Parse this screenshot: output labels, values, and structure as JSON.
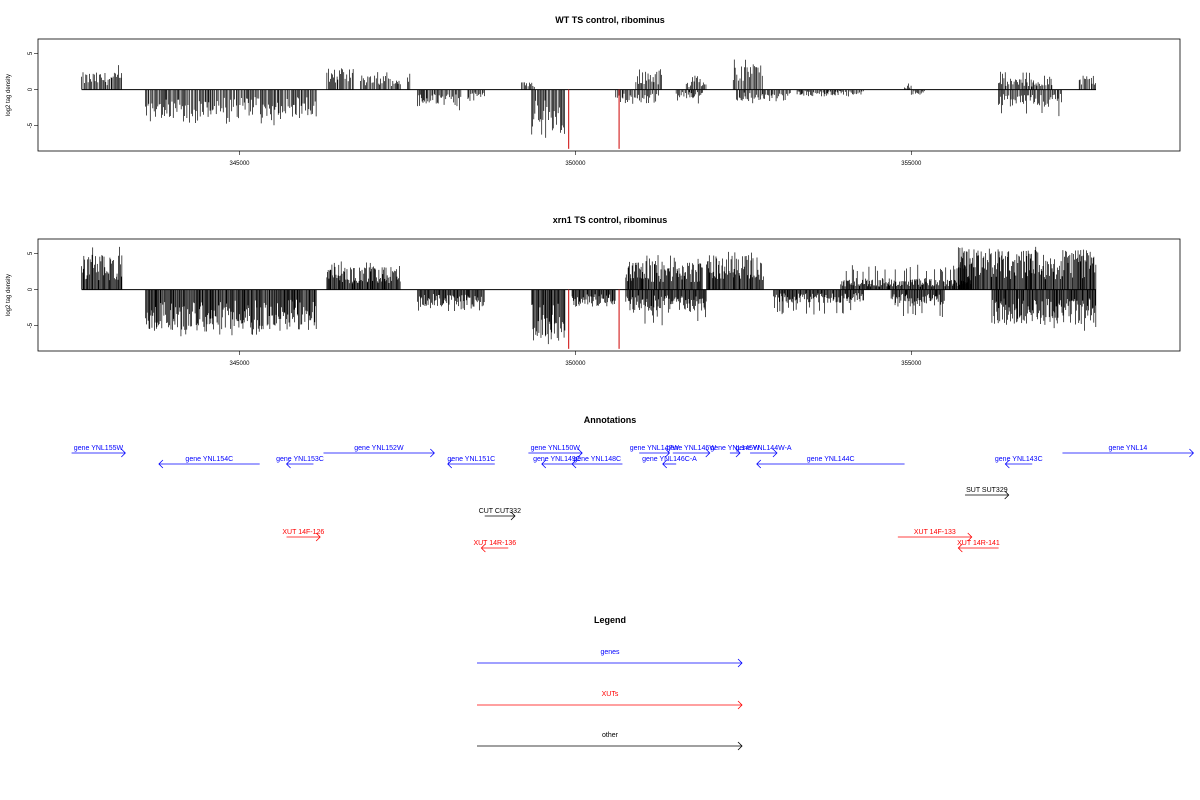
{
  "chart_data": [
    {
      "type": "bar",
      "title": "WT TS control, ribominus",
      "ylabel": "log2 tag density",
      "xlabel": "",
      "xlim": [
        342000,
        359000
      ],
      "ylim": [
        -8.5,
        7
      ],
      "x_ticks": [
        345000,
        350000,
        355000
      ],
      "x_tick_labels": [
        "345000",
        "350000",
        "355000"
      ],
      "y_ticks": [
        5,
        0,
        -5
      ],
      "y_tick_labels": [
        "5",
        "0",
        "-5"
      ],
      "baseline_span": [
        342650,
        357750
      ],
      "highlight_x": [
        349900,
        350650
      ],
      "highlight_value": -8.2,
      "highlight_color": "#cc0000",
      "segments": [
        [
          342650,
          343250,
          1.5,
          4
        ],
        [
          343600,
          346150,
          -2.5,
          5
        ],
        [
          346300,
          346700,
          1.8,
          3
        ],
        [
          346800,
          347400,
          1.2,
          2.5
        ],
        [
          347500,
          347550,
          1.5,
          2.5
        ],
        [
          347650,
          348300,
          -1.5,
          3
        ],
        [
          348400,
          348650,
          -1.0,
          2
        ],
        [
          349200,
          349400,
          0.8,
          1
        ],
        [
          349350,
          349850,
          -3.5,
          7
        ],
        [
          350600,
          351250,
          -1.2,
          2
        ],
        [
          350900,
          351300,
          1.8,
          3
        ],
        [
          351500,
          351900,
          -0.8,
          2
        ],
        [
          351650,
          351950,
          0.8,
          2
        ],
        [
          352350,
          352800,
          2.5,
          5.5
        ],
        [
          352400,
          353200,
          -1.0,
          2
        ],
        [
          353300,
          354300,
          -0.5,
          1
        ],
        [
          354900,
          355000,
          0.5,
          1
        ],
        [
          355000,
          355200,
          -0.5,
          1
        ],
        [
          356300,
          357100,
          1.0,
          2.5
        ],
        [
          356300,
          357250,
          -1.5,
          4.5
        ],
        [
          357500,
          357750,
          1.2,
          2.5
        ]
      ]
    },
    {
      "type": "bar",
      "title": "xrn1 TS control, ribominus",
      "ylabel": "log2 tag density",
      "xlabel": "",
      "xlim": [
        342000,
        359000
      ],
      "ylim": [
        -8.5,
        7
      ],
      "x_ticks": [
        345000,
        350000,
        355000
      ],
      "x_tick_labels": [
        "345000",
        "350000",
        "355000"
      ],
      "y_ticks": [
        5,
        0,
        -5
      ],
      "y_tick_labels": [
        "5",
        "0",
        "-5"
      ],
      "baseline_span": [
        342650,
        357750
      ],
      "highlight_x": [
        349900,
        350650
      ],
      "highlight_value": -8.2,
      "highlight_color": "#cc0000",
      "segments": [
        [
          342650,
          343250,
          3.0,
          6
        ],
        [
          343600,
          346150,
          -3.5,
          6.5
        ],
        [
          346300,
          347400,
          2.0,
          4
        ],
        [
          347650,
          348650,
          -1.5,
          3
        ],
        [
          349350,
          349850,
          -4.5,
          8
        ],
        [
          349950,
          350600,
          -1.5,
          2.5
        ],
        [
          350750,
          351900,
          2.5,
          5
        ],
        [
          350750,
          351950,
          -2.0,
          5
        ],
        [
          351950,
          352800,
          3.0,
          6
        ],
        [
          352950,
          354300,
          -1.2,
          3.5
        ],
        [
          353950,
          355900,
          1.0,
          3.5
        ],
        [
          354700,
          355500,
          -1.5,
          4
        ],
        [
          355700,
          357750,
          3.5,
          6
        ],
        [
          356200,
          357750,
          -3.0,
          6
        ]
      ]
    }
  ],
  "annotations": {
    "title": "Annotations",
    "features": [
      {
        "label": "gene YNL155W",
        "start": 342500,
        "end": 343300,
        "row": 0,
        "cls": "gene"
      },
      {
        "label": "gene YNL154C",
        "start": 343800,
        "end": 345300,
        "row": 1,
        "cls": "gene"
      },
      {
        "label": "gene YNL153C",
        "start": 345700,
        "end": 346100,
        "row": 1,
        "cls": "gene"
      },
      {
        "label": "gene YNL152W",
        "start": 346250,
        "end": 347900,
        "row": 0,
        "cls": "gene"
      },
      {
        "label": "gene YNL151C",
        "start": 348100,
        "end": 348800,
        "row": 1,
        "cls": "gene"
      },
      {
        "label": "gene YNL150W",
        "start": 349300,
        "end": 350100,
        "row": 0,
        "cls": "gene"
      },
      {
        "label": "gene YNL149C",
        "start": 349500,
        "end": 349950,
        "row": 1,
        "cls": "gene"
      },
      {
        "label": "gene YNL148C",
        "start": 349950,
        "end": 350700,
        "row": 1,
        "cls": "gene"
      },
      {
        "label": "gene YNL147W",
        "start": 350950,
        "end": 351400,
        "row": 0,
        "cls": "gene"
      },
      {
        "label": "gene YNL146W",
        "start": 351450,
        "end": 352000,
        "row": 0,
        "cls": "gene"
      },
      {
        "label": "gene YNL146C-A",
        "start": 351300,
        "end": 351500,
        "row": 1,
        "cls": "gene"
      },
      {
        "label": "gene YNL145W",
        "start": 352300,
        "end": 352450,
        "row": 0,
        "cls": "gene"
      },
      {
        "label": "gene YNL144W-A",
        "start": 352600,
        "end": 353000,
        "row": 0,
        "cls": "gene"
      },
      {
        "label": "gene YNL144C",
        "start": 352700,
        "end": 354900,
        "row": 1,
        "cls": "gene"
      },
      {
        "label": "gene YNL143C",
        "start": 356400,
        "end": 356800,
        "row": 1,
        "cls": "gene"
      },
      {
        "label": "gene YNL14",
        "start": 357250,
        "end": 359200,
        "row": 0,
        "cls": "gene"
      },
      {
        "label": "CUT CUT332",
        "start": 348650,
        "end": 349100,
        "row": 4,
        "cls": "other"
      },
      {
        "label": "SUT SUT329",
        "start": 355800,
        "end": 356450,
        "row": 3,
        "cls": "other"
      },
      {
        "label": "XUT 14F-126",
        "start": 345700,
        "end": 346200,
        "row": 6,
        "cls": "xut"
      },
      {
        "label": "XUT 14R-136",
        "start": 348600,
        "end": 349000,
        "row": 7,
        "cls": "xut"
      },
      {
        "label": "XUT 14F-133",
        "start": 354800,
        "end": 355900,
        "row": 6,
        "cls": "xut"
      },
      {
        "label": "XUT 14R-141",
        "start": 355700,
        "end": 356300,
        "row": 7,
        "cls": "xut"
      }
    ]
  },
  "legend": {
    "title": "Legend",
    "items": [
      {
        "label": "genes",
        "color": "#0000ff"
      },
      {
        "label": "XUTs",
        "color": "#ff0000"
      },
      {
        "label": "other",
        "color": "#000000"
      }
    ]
  },
  "colors": {
    "gene": "#0000ff",
    "xut": "#ff0000",
    "other": "#000000"
  }
}
